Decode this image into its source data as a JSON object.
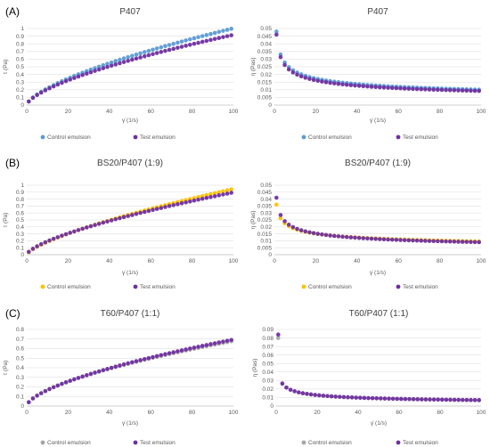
{
  "panel_labels": [
    "(A)",
    "(B)",
    "(C)"
  ],
  "colors": {
    "control_A": "#5b9bd5",
    "control_B": "#ffc000",
    "control_C": "#a5a5a5",
    "test": "#7030a0"
  },
  "chart_data": [
    {
      "type": "scatter",
      "title": "P407",
      "xlabel": "γ̇  (1/s)",
      "ylabel": "τ (Pa)",
      "xlim": [
        0,
        100
      ],
      "ylim": [
        0,
        1
      ],
      "xticks": [
        "0",
        "20",
        "40",
        "60",
        "80",
        "100"
      ],
      "yticks": [
        "0",
        "0.1",
        "0.2",
        "0.3",
        "0.4",
        "0.5",
        "0.6",
        "0.7",
        "0.8",
        "0.9",
        "1"
      ],
      "legend": "bottom",
      "grid": true,
      "series": [
        {
          "name": "Control emulsion",
          "color_key": "control_A",
          "model": {
            "kind": "power",
            "a": 0.048,
            "n": 0.66
          }
        },
        {
          "name": "Test emulsion",
          "color_key": "test",
          "model": {
            "kind": "power",
            "a": 0.046,
            "n": 0.65
          }
        }
      ]
    },
    {
      "type": "scatter",
      "title": "P407",
      "xlabel": "γ̇  (1/s)",
      "ylabel": "η (Pas)",
      "xlim": [
        0,
        100
      ],
      "ylim": [
        0,
        0.05
      ],
      "xticks": [
        "0",
        "20",
        "40",
        "60",
        "80",
        "100"
      ],
      "yticks": [
        "0",
        "0.005",
        "0.01",
        "0.015",
        "0.02",
        "0.025",
        "0.03",
        "0.035",
        "0.04",
        "0.045",
        "0.05"
      ],
      "legend": "bottom",
      "grid": true,
      "series": [
        {
          "name": "Control emulsion",
          "color_key": "control_A",
          "model": {
            "kind": "visc",
            "a": 0.048,
            "n": 0.66
          }
        },
        {
          "name": "Test emulsion",
          "color_key": "test",
          "model": {
            "kind": "visc",
            "a": 0.046,
            "n": 0.65
          }
        }
      ]
    },
    {
      "type": "scatter",
      "title": "BS20/P407 (1:9)",
      "xlabel": "γ̇  (1/s)",
      "ylabel": "τ (Pa)",
      "xlim": [
        0,
        100
      ],
      "ylim": [
        0,
        1
      ],
      "xticks": [
        "0",
        "20",
        "40",
        "60",
        "80",
        "100"
      ],
      "yticks": [
        "0",
        "0.1",
        "0.2",
        "0.3",
        "0.4",
        "0.5",
        "0.6",
        "0.7",
        "0.8",
        "0.9",
        "1"
      ],
      "legend": "bottom",
      "grid": true,
      "series": [
        {
          "name": "Control emulsion",
          "color_key": "control_B",
          "model": {
            "kind": "power",
            "a": 0.036,
            "n": 0.71
          }
        },
        {
          "name": "Test emulsion",
          "color_key": "test",
          "model": {
            "kind": "power",
            "a": 0.041,
            "n": 0.67
          }
        }
      ]
    },
    {
      "type": "scatter",
      "title": "BS20/P407 (1:9)",
      "xlabel": "γ̇  (1/s)",
      "ylabel": "η (Pas)",
      "xlim": [
        0,
        100
      ],
      "ylim": [
        0,
        0.05
      ],
      "xticks": [
        "0",
        "20",
        "40",
        "60",
        "80",
        "100"
      ],
      "yticks": [
        "0",
        "0.005",
        "0.01",
        "0.015",
        "0.02",
        "0.025",
        "0.03",
        "0.035",
        "0.04",
        "0.045",
        "0.05"
      ],
      "legend": "bottom",
      "grid": true,
      "series": [
        {
          "name": "Control emulsion",
          "color_key": "control_B",
          "model": {
            "kind": "visc",
            "a": 0.036,
            "n": 0.71
          }
        },
        {
          "name": "Test emulsion",
          "color_key": "test",
          "model": {
            "kind": "visc",
            "a": 0.041,
            "n": 0.67
          }
        }
      ]
    },
    {
      "type": "scatter",
      "title": "T60/P407 (1:1)",
      "xlabel": "γ̇  (1/s)",
      "ylabel": "τ (Pa)",
      "xlim": [
        0,
        100
      ],
      "ylim": [
        0,
        0.8
      ],
      "xticks": [
        "0",
        "20",
        "40",
        "60",
        "80",
        "100"
      ],
      "yticks": [
        "0",
        "0.1",
        "0.2",
        "0.3",
        "0.4",
        "0.5",
        "0.6",
        "0.7",
        "0.8"
      ],
      "legend": "bottom",
      "grid": true,
      "series": [
        {
          "name": "Control emulsion",
          "color_key": "control_C",
          "model": {
            "kind": "power",
            "a": 0.041,
            "n": 0.61
          }
        },
        {
          "name": "Test emulsion",
          "color_key": "test",
          "model": {
            "kind": "power",
            "a": 0.04,
            "n": 0.62
          }
        }
      ]
    },
    {
      "type": "scatter",
      "title": "T60/P407 (1:1)",
      "xlabel": "γ̇  (1/s)",
      "ylabel": "η (Pas)",
      "xlim": [
        0,
        100
      ],
      "ylim": [
        0,
        0.09
      ],
      "xticks": [
        "0",
        "20",
        "40",
        "60",
        "80",
        "100"
      ],
      "yticks": [
        "0",
        "0.01",
        "0.02",
        "0.03",
        "0.04",
        "0.05",
        "0.06",
        "0.07",
        "0.08",
        "0.09"
      ],
      "legend": "bottom",
      "grid": true,
      "series": [
        {
          "name": "Control emulsion",
          "color_key": "control_C",
          "model": {
            "kind": "visc",
            "a": 0.041,
            "n": 0.61,
            "first": 0.08
          }
        },
        {
          "name": "Test emulsion",
          "color_key": "test",
          "model": {
            "kind": "visc",
            "a": 0.04,
            "n": 0.62,
            "first": 0.084
          }
        }
      ]
    }
  ]
}
